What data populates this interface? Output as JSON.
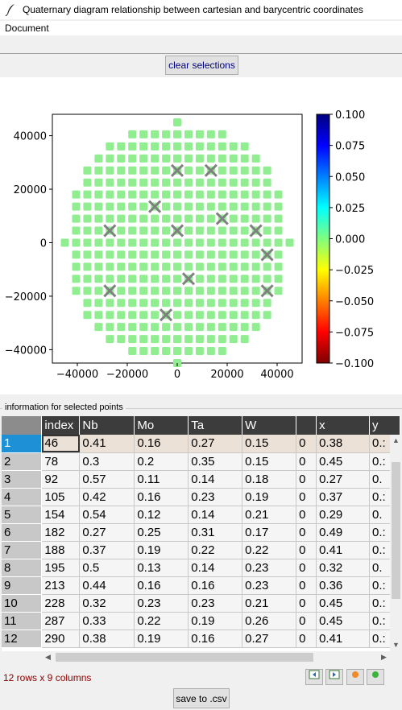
{
  "window": {
    "title": "Quaternary diagram relationship between cartesian and barycentric coordinates"
  },
  "menu": {
    "items": [
      "Document"
    ]
  },
  "toolbar": {
    "clear_label": "clear selections"
  },
  "chart_data": {
    "type": "scatter",
    "xlim": [
      -50000,
      50000
    ],
    "ylim": [
      -45000,
      48000
    ],
    "x_ticks": [
      -40000,
      -20000,
      0,
      20000,
      40000
    ],
    "y_ticks": [
      -40000,
      -20000,
      0,
      20000,
      40000
    ],
    "grid": false,
    "point_color": "#90ee90",
    "marker_color": "#808080",
    "grid_step": 4500,
    "circle_radius": 45000,
    "selected_points": [
      {
        "x": 0,
        "y": 27000
      },
      {
        "x": 13500,
        "y": 27000
      },
      {
        "x": -9000,
        "y": 13500
      },
      {
        "x": 18000,
        "y": 9000
      },
      {
        "x": -27000,
        "y": 4500
      },
      {
        "x": 0,
        "y": 4500
      },
      {
        "x": 31500,
        "y": 4500
      },
      {
        "x": 36000,
        "y": -4500
      },
      {
        "x": 4500,
        "y": -13500
      },
      {
        "x": -27000,
        "y": -18000
      },
      {
        "x": 36000,
        "y": -18000
      },
      {
        "x": -4500,
        "y": -27000
      }
    ],
    "colorbar": {
      "ticks": [
        "0.100",
        "0.075",
        "0.050",
        "0.025",
        "0.000",
        "−0.025",
        "−0.050",
        "−0.075",
        "−0.100"
      ],
      "range": [
        -0.1,
        0.1
      ],
      "colors": [
        "#00007f",
        "#0000ff",
        "#007fff",
        "#00ffff",
        "#7fff7f",
        "#ffff00",
        "#ff7f00",
        "#ff0000",
        "#7f0000"
      ]
    }
  },
  "section": {
    "label": "information for selected points"
  },
  "table": {
    "headers": [
      "index",
      "Nb",
      "Mo",
      "Ta",
      "W",
      "",
      "x",
      "y"
    ],
    "rows": [
      {
        "num": "1",
        "cells": [
          "46",
          "0.41",
          "0.16",
          "0.27",
          "0.15",
          "0",
          "0.38",
          "0.:"
        ]
      },
      {
        "num": "2",
        "cells": [
          "78",
          "0.3",
          "0.2",
          "0.35",
          "0.15",
          "0",
          "0.45",
          "0.:"
        ]
      },
      {
        "num": "3",
        "cells": [
          "92",
          "0.57",
          "0.11",
          "0.14",
          "0.18",
          "0",
          "0.27",
          "0."
        ]
      },
      {
        "num": "4",
        "cells": [
          "105",
          "0.42",
          "0.16",
          "0.23",
          "0.19",
          "0",
          "0.37",
          "0.:"
        ]
      },
      {
        "num": "5",
        "cells": [
          "154",
          "0.54",
          "0.12",
          "0.14",
          "0.21",
          "0",
          "0.29",
          "0."
        ]
      },
      {
        "num": "6",
        "cells": [
          "182",
          "0.27",
          "0.25",
          "0.31",
          "0.17",
          "0",
          "0.49",
          "0.:"
        ]
      },
      {
        "num": "7",
        "cells": [
          "188",
          "0.37",
          "0.19",
          "0.22",
          "0.22",
          "0",
          "0.41",
          "0.:"
        ]
      },
      {
        "num": "8",
        "cells": [
          "195",
          "0.5",
          "0.13",
          "0.14",
          "0.23",
          "0",
          "0.32",
          "0."
        ]
      },
      {
        "num": "9",
        "cells": [
          "213",
          "0.44",
          "0.16",
          "0.16",
          "0.23",
          "0",
          "0.36",
          "0.:"
        ]
      },
      {
        "num": "10",
        "cells": [
          "228",
          "0.32",
          "0.23",
          "0.23",
          "0.21",
          "0",
          "0.45",
          "0.:"
        ]
      },
      {
        "num": "11",
        "cells": [
          "287",
          "0.33",
          "0.22",
          "0.19",
          "0.26",
          "0",
          "0.45",
          "0.:"
        ]
      },
      {
        "num": "12",
        "cells": [
          "290",
          "0.38",
          "0.19",
          "0.16",
          "0.27",
          "0",
          "0.41",
          "0.:"
        ]
      }
    ]
  },
  "status": {
    "text": "12 rows x 9 columns"
  },
  "tools": {
    "icons": [
      "prev-page-icon",
      "next-page-icon",
      "orange-dot-icon",
      "green-dot-icon"
    ]
  },
  "footer": {
    "save_label": "save to .csv"
  }
}
